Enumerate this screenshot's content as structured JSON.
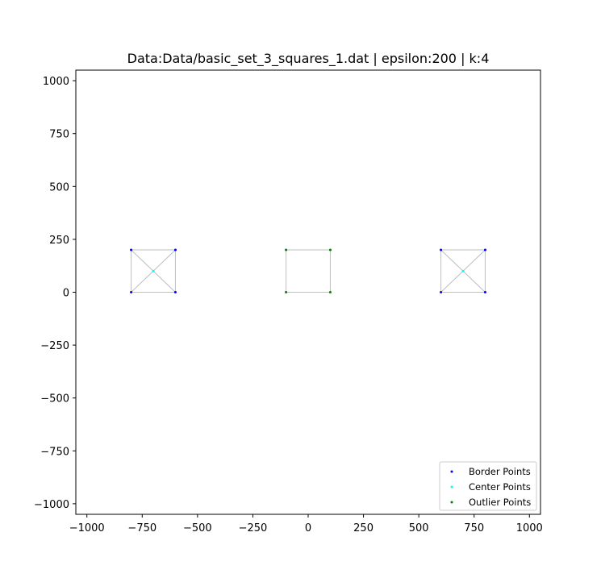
{
  "chart_data": {
    "type": "scatter",
    "title": "Data:Data/basic_set_3_squares_1.dat | epsilon:200 | k:4",
    "xlabel": "",
    "ylabel": "",
    "xlim": [
      -1050,
      1050
    ],
    "ylim": [
      -1050,
      1050
    ],
    "xticks": [
      -1000,
      -750,
      -500,
      -250,
      0,
      250,
      500,
      750,
      1000
    ],
    "yticks": [
      -1000,
      -750,
      -500,
      -250,
      0,
      250,
      500,
      750,
      1000
    ],
    "xtick_labels": [
      "−1000",
      "−750",
      "−500",
      "−250",
      "0",
      "250",
      "500",
      "750",
      "1000"
    ],
    "ytick_labels": [
      "−1000",
      "−750",
      "−500",
      "−250",
      "0",
      "250",
      "500",
      "750",
      "1000"
    ],
    "grid": false,
    "legend_position": "lower-right",
    "edges": [
      [
        [
          -800,
          0
        ],
        [
          -600,
          0
        ]
      ],
      [
        [
          -600,
          0
        ],
        [
          -600,
          200
        ]
      ],
      [
        [
          -600,
          200
        ],
        [
          -800,
          200
        ]
      ],
      [
        [
          -800,
          200
        ],
        [
          -800,
          0
        ]
      ],
      [
        [
          -800,
          0
        ],
        [
          -600,
          200
        ]
      ],
      [
        [
          -800,
          200
        ],
        [
          -600,
          0
        ]
      ],
      [
        [
          -100,
          0
        ],
        [
          100,
          0
        ]
      ],
      [
        [
          100,
          0
        ],
        [
          100,
          200
        ]
      ],
      [
        [
          100,
          200
        ],
        [
          -100,
          200
        ]
      ],
      [
        [
          -100,
          200
        ],
        [
          -100,
          0
        ]
      ],
      [
        [
          600,
          0
        ],
        [
          800,
          0
        ]
      ],
      [
        [
          800,
          0
        ],
        [
          800,
          200
        ]
      ],
      [
        [
          800,
          200
        ],
        [
          600,
          200
        ]
      ],
      [
        [
          600,
          200
        ],
        [
          600,
          0
        ]
      ],
      [
        [
          600,
          0
        ],
        [
          800,
          200
        ]
      ],
      [
        [
          600,
          200
        ],
        [
          800,
          0
        ]
      ]
    ],
    "edge_color": "#bfbfbf",
    "series": [
      {
        "name": "Border Points",
        "color": "#0000ff",
        "x": [
          -800,
          -600,
          -800,
          -600,
          600,
          800,
          600,
          800
        ],
        "y": [
          0,
          0,
          200,
          200,
          0,
          0,
          200,
          200
        ]
      },
      {
        "name": "Center Points",
        "color": "#00ffff",
        "x": [
          -700,
          700
        ],
        "y": [
          100,
          100
        ]
      },
      {
        "name": "Outlier Points",
        "color": "#008000",
        "x": [
          -100,
          100,
          -100,
          100
        ],
        "y": [
          0,
          0,
          200,
          200
        ]
      }
    ]
  }
}
